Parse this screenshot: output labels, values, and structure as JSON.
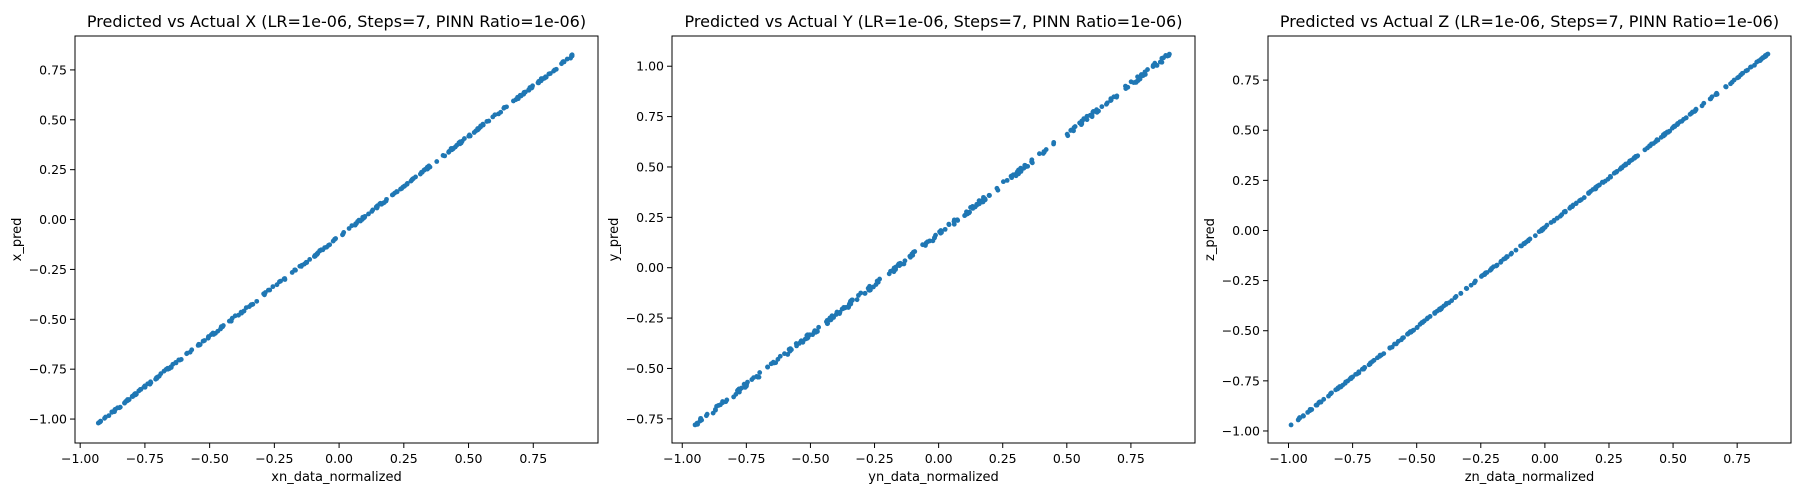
{
  "chart_data": [
    {
      "type": "scatter",
      "title": "Predicted vs Actual X (LR=1e-06, Steps=7, PINN Ratio=1e-06)",
      "xlabel": "xn_data_normalized",
      "ylabel": "x_pred",
      "xlim": [
        -1.02,
        1.0
      ],
      "ylim": [
        -1.12,
        0.92
      ],
      "xticks": [
        -1.0,
        -0.75,
        -0.5,
        -0.25,
        0.0,
        0.25,
        0.5,
        0.75
      ],
      "xtick_labels": [
        "−1.00",
        "−0.75",
        "−0.50",
        "−0.25",
        "0.00",
        "0.25",
        "0.50",
        "0.75"
      ],
      "yticks": [
        -1.0,
        -0.75,
        -0.5,
        -0.25,
        0.0,
        0.25,
        0.5,
        0.75
      ],
      "ytick_labels": [
        "−1.00",
        "−0.75",
        "−0.50",
        "−0.25",
        "0.00",
        "0.25",
        "0.50",
        "0.75"
      ],
      "color": "#1f77b4",
      "x_range": [
        -0.93,
        0.9
      ],
      "y_range": [
        -1.02,
        0.82
      ],
      "n_points": 300,
      "spread": 0.006,
      "grid": false
    },
    {
      "type": "scatter",
      "title": "Predicted vs Actual Y (LR=1e-06, Steps=7, PINN Ratio=1e-06)",
      "xlabel": "yn_data_normalized",
      "ylabel": "y_pred",
      "xlim": [
        -1.04,
        1.0
      ],
      "ylim": [
        -0.87,
        1.15
      ],
      "xticks": [
        -1.0,
        -0.75,
        -0.5,
        -0.25,
        0.0,
        0.25,
        0.5,
        0.75
      ],
      "xtick_labels": [
        "−1.00",
        "−0.75",
        "−0.50",
        "−0.25",
        "0.00",
        "0.25",
        "0.50",
        "0.75"
      ],
      "yticks": [
        -0.75,
        -0.5,
        -0.25,
        0.0,
        0.25,
        0.5,
        0.75,
        1.0
      ],
      "ytick_labels": [
        "−0.75",
        "−0.50",
        "−0.25",
        "0.00",
        "0.25",
        "0.50",
        "0.75",
        "1.00"
      ],
      "color": "#1f77b4",
      "x_range": [
        -0.95,
        0.9
      ],
      "y_range": [
        -0.78,
        1.06
      ],
      "n_points": 300,
      "spread": 0.012,
      "grid": false
    },
    {
      "type": "scatter",
      "title": "Predicted vs Actual Z (LR=1e-06, Steps=7, PINN Ratio=1e-06)",
      "xlabel": "zn_data_normalized",
      "ylabel": "z_pred",
      "xlim": [
        -1.08,
        0.96
      ],
      "ylim": [
        -1.06,
        0.97
      ],
      "xticks": [
        -1.0,
        -0.75,
        -0.5,
        -0.25,
        0.0,
        0.25,
        0.5,
        0.75
      ],
      "xtick_labels": [
        "−1.00",
        "−0.75",
        "−0.50",
        "−0.25",
        "0.00",
        "0.25",
        "0.50",
        "0.75"
      ],
      "yticks": [
        -1.0,
        -0.75,
        -0.5,
        -0.25,
        0.0,
        0.25,
        0.5,
        0.75
      ],
      "ytick_labels": [
        "−1.00",
        "−0.75",
        "−0.50",
        "−0.25",
        "0.00",
        "0.25",
        "0.50",
        "0.75"
      ],
      "color": "#1f77b4",
      "x_range": [
        -0.99,
        0.87
      ],
      "y_range": [
        -0.97,
        0.88
      ],
      "n_points": 300,
      "spread": 0.004,
      "grid": false
    }
  ]
}
